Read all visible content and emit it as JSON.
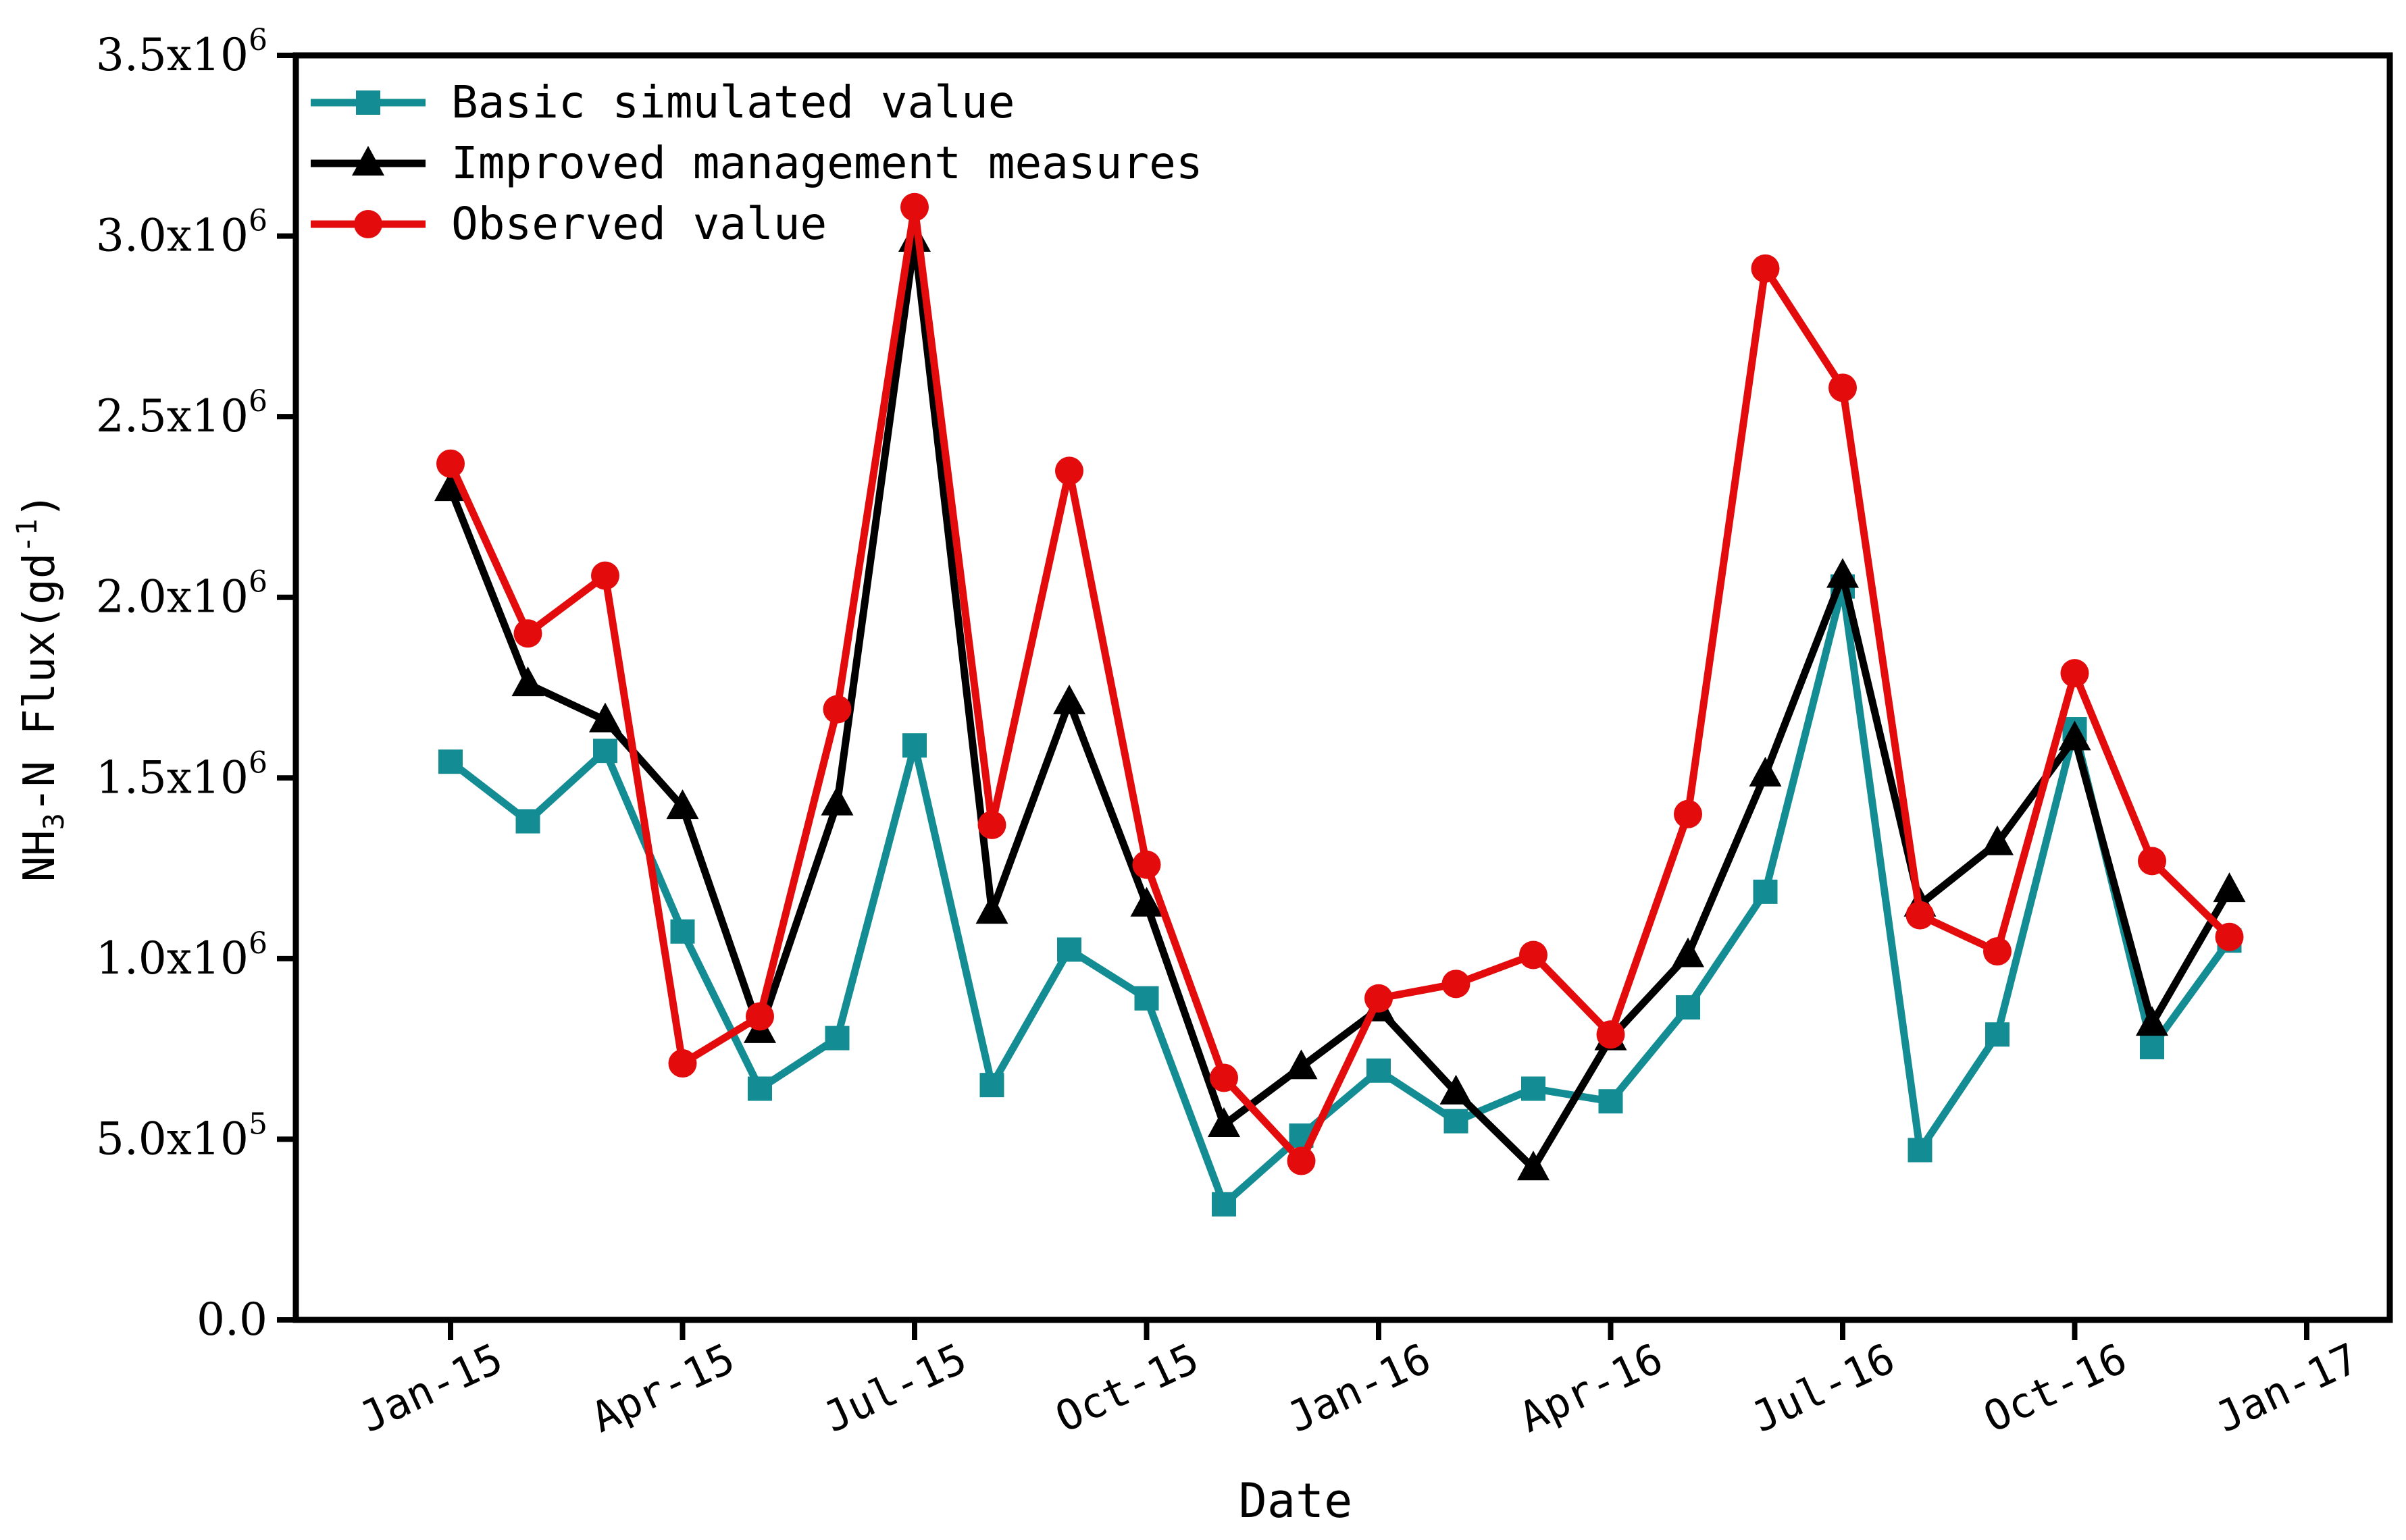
{
  "chart_data": {
    "type": "line",
    "xlabel": "Date",
    "ylabel": {
      "prefix": "NH",
      "sub": "3",
      "mid": "-N Flux(gd",
      "sup": "-1",
      "suffix": ")"
    },
    "ylim": [
      0,
      3500000
    ],
    "y_ticks": [
      {
        "value": 0,
        "mantissa": "0.0",
        "exp": ""
      },
      {
        "value": 500000,
        "mantissa": "5.0x10",
        "exp": "5"
      },
      {
        "value": 1000000,
        "mantissa": "1.0x10",
        "exp": "6"
      },
      {
        "value": 1500000,
        "mantissa": "1.5x10",
        "exp": "6"
      },
      {
        "value": 2000000,
        "mantissa": "2.0x10",
        "exp": "6"
      },
      {
        "value": 2500000,
        "mantissa": "2.5x10",
        "exp": "6"
      },
      {
        "value": 3000000,
        "mantissa": "3.0x10",
        "exp": "6"
      },
      {
        "value": 3500000,
        "mantissa": "3.5x10",
        "exp": "6"
      }
    ],
    "x_ticks": [
      "Jan-15",
      "Apr-15",
      "Jul-15",
      "Oct-15",
      "Jan-16",
      "Apr-16",
      "Jul-16",
      "Oct-16",
      "Jan-17"
    ],
    "x_months": [
      "Jan-15",
      "Feb-15",
      "Mar-15",
      "Apr-15",
      "May-15",
      "Jun-15",
      "Jul-15",
      "Aug-15",
      "Sep-15",
      "Oct-15",
      "Nov-15",
      "Dec-15",
      "Jan-16",
      "Feb-16",
      "Mar-16",
      "Apr-16",
      "May-16",
      "Jun-16",
      "Jul-16",
      "Aug-16",
      "Sep-16",
      "Oct-16",
      "Nov-16",
      "Dec-16"
    ],
    "legend_position": "top-left",
    "grid": false,
    "series": [
      {
        "name": "Basic simulated value",
        "color": "#138d93",
        "marker": "square",
        "values": [
          1545000,
          1380000,
          1575000,
          1075000,
          640000,
          780000,
          1590000,
          650000,
          1025000,
          890000,
          320000,
          510000,
          690000,
          550000,
          640000,
          605000,
          865000,
          1185000,
          2030000,
          470000,
          790000,
          1635000,
          755000,
          1050000
        ]
      },
      {
        "name": "Improved management measures",
        "color": "#000000",
        "marker": "triangle",
        "values": [
          2300000,
          1760000,
          1660000,
          1420000,
          800000,
          1430000,
          2990000,
          1130000,
          1710000,
          1150000,
          540000,
          700000,
          860000,
          630000,
          420000,
          780000,
          1010000,
          1510000,
          2060000,
          1150000,
          1320000,
          1610000,
          820000,
          1190000
        ]
      },
      {
        "name": "Observed value",
        "color": "#e30b0b",
        "marker": "circle",
        "values": [
          2370000,
          1900000,
          2060000,
          710000,
          840000,
          1690000,
          3080000,
          1370000,
          2350000,
          1260000,
          670000,
          440000,
          890000,
          930000,
          1010000,
          790000,
          1400000,
          2910000,
          2580000,
          1120000,
          1020000,
          1790000,
          1270000,
          1060000
        ]
      }
    ]
  }
}
